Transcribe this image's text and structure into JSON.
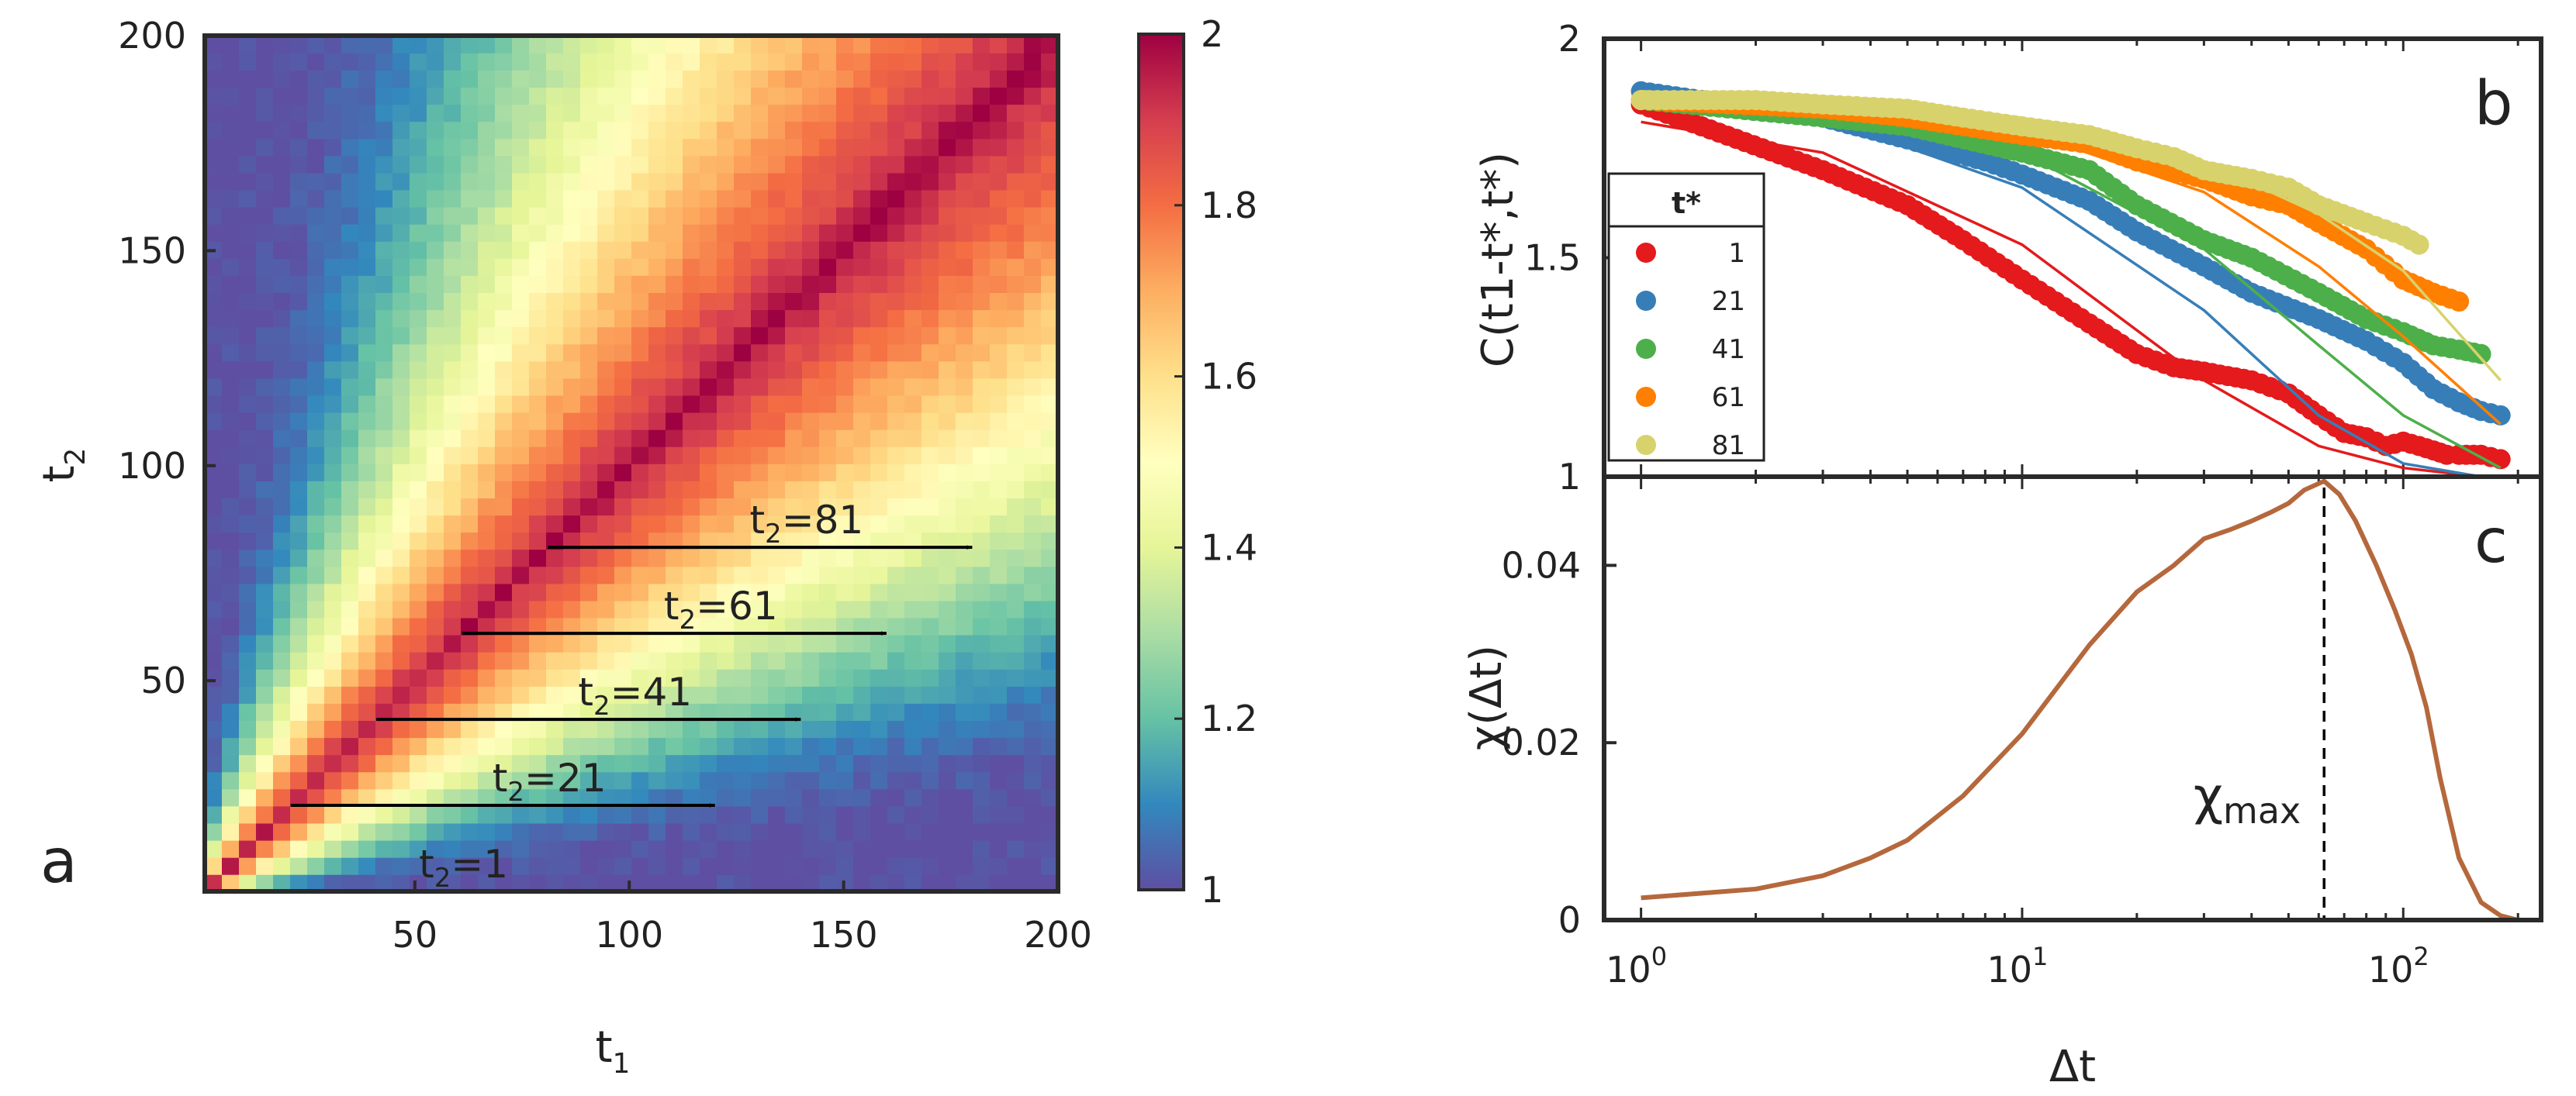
{
  "chart_data": [
    {
      "id": "a",
      "type": "heatmap",
      "panel_label": "a",
      "title": "",
      "xlabel": "t",
      "xlabel_sub": "1",
      "ylabel": "t",
      "ylabel_sub": "2",
      "xlim": [
        1,
        200
      ],
      "ylim": [
        1,
        200
      ],
      "xticks": [
        50,
        100,
        150,
        200
      ],
      "yticks": [
        50,
        100,
        150,
        200
      ],
      "colorbar": {
        "range": [
          1,
          2
        ],
        "ticks": [
          1,
          1.2,
          1.4,
          1.6,
          1.8,
          2
        ]
      },
      "colormap": [
        "#5e4fa2",
        "#3288bd",
        "#66c2a5",
        "#abdda4",
        "#e6f598",
        "#ffffbf",
        "#fee08b",
        "#fdae61",
        "#f46d43",
        "#d53e4f",
        "#9e0142"
      ],
      "arrows": [
        {
          "t2": 1,
          "x_start": 1,
          "x_end": 100,
          "label_prefix": "t",
          "label_sub": "2",
          "label_value": "=1"
        },
        {
          "t2": 21,
          "x_start": 21,
          "x_end": 120,
          "label_prefix": "t",
          "label_sub": "2",
          "label_value": "=21"
        },
        {
          "t2": 41,
          "x_start": 41,
          "x_end": 140,
          "label_prefix": "t",
          "label_sub": "2",
          "label_value": "=41"
        },
        {
          "t2": 61,
          "x_start": 61,
          "x_end": 160,
          "label_prefix": "t",
          "label_sub": "2",
          "label_value": "=61"
        },
        {
          "t2": 81,
          "x_start": 81,
          "x_end": 180,
          "label_prefix": "t",
          "label_sub": "2",
          "label_value": "=81"
        }
      ],
      "description_values": {
        "diagonal": 2.0,
        "far_offdiag_min": 1.0
      }
    },
    {
      "id": "b",
      "type": "scatter",
      "panel_label": "b",
      "ylabel": "C(t1-t*,t*)",
      "xscale": "log",
      "xlim": [
        0.8,
        230
      ],
      "ylim": [
        1,
        2
      ],
      "yticks": [
        1,
        1.5,
        2
      ],
      "legend": {
        "title": "t*",
        "placement": "middle-left"
      },
      "series": [
        {
          "name": "1",
          "color": "#e41a1c",
          "points": [
            [
              1,
              1.85
            ],
            [
              3,
              1.7
            ],
            [
              5,
              1.62
            ],
            [
              7,
              1.54
            ],
            [
              10,
              1.45
            ],
            [
              15,
              1.35
            ],
            [
              20,
              1.28
            ],
            [
              25,
              1.25
            ],
            [
              30,
              1.24
            ],
            [
              40,
              1.22
            ],
            [
              50,
              1.19
            ],
            [
              60,
              1.14
            ],
            [
              70,
              1.1
            ],
            [
              80,
              1.09
            ],
            [
              90,
              1.07
            ],
            [
              100,
              1.08
            ],
            [
              110,
              1.07
            ],
            [
              120,
              1.06
            ],
            [
              130,
              1.05
            ],
            [
              140,
              1.05
            ],
            [
              160,
              1.05
            ],
            [
              180,
              1.04
            ]
          ],
          "fit": [
            [
              1,
              1.81
            ],
            [
              3,
              1.74
            ],
            [
              10,
              1.53
            ],
            [
              30,
              1.22
            ],
            [
              60,
              1.07
            ],
            [
              100,
              1.02
            ],
            [
              160,
              1.0
            ]
          ]
        },
        {
          "name": "21",
          "color": "#377eb8",
          "points": [
            [
              1,
              1.88
            ],
            [
              3,
              1.82
            ],
            [
              5,
              1.77
            ],
            [
              8,
              1.72
            ],
            [
              10,
              1.69
            ],
            [
              15,
              1.63
            ],
            [
              20,
              1.56
            ],
            [
              30,
              1.48
            ],
            [
              40,
              1.42
            ],
            [
              60,
              1.36
            ],
            [
              80,
              1.31
            ],
            [
              100,
              1.26
            ],
            [
              120,
              1.2
            ],
            [
              140,
              1.17
            ],
            [
              160,
              1.15
            ],
            [
              180,
              1.14
            ]
          ],
          "fit": [
            [
              1,
              1.86
            ],
            [
              3,
              1.82
            ],
            [
              10,
              1.66
            ],
            [
              30,
              1.38
            ],
            [
              60,
              1.14
            ],
            [
              100,
              1.03
            ],
            [
              160,
              1.0
            ]
          ]
        },
        {
          "name": "41",
          "color": "#4daf4a",
          "points": [
            [
              1,
              1.86
            ],
            [
              3,
              1.82
            ],
            [
              5,
              1.8
            ],
            [
              10,
              1.74
            ],
            [
              15,
              1.7
            ],
            [
              20,
              1.62
            ],
            [
              30,
              1.54
            ],
            [
              40,
              1.5
            ],
            [
              60,
              1.42
            ],
            [
              80,
              1.36
            ],
            [
              100,
              1.33
            ],
            [
              120,
              1.3
            ],
            [
              140,
              1.29
            ],
            [
              160,
              1.28
            ]
          ],
          "fit": [
            [
              1,
              1.87
            ],
            [
              3,
              1.84
            ],
            [
              10,
              1.74
            ],
            [
              30,
              1.52
            ],
            [
              60,
              1.3
            ],
            [
              100,
              1.14
            ],
            [
              180,
              1.02
            ]
          ]
        },
        {
          "name": "61",
          "color": "#ff7f00",
          "points": [
            [
              1,
              1.86
            ],
            [
              3,
              1.84
            ],
            [
              5,
              1.82
            ],
            [
              10,
              1.78
            ],
            [
              15,
              1.76
            ],
            [
              20,
              1.72
            ],
            [
              30,
              1.68
            ],
            [
              40,
              1.64
            ],
            [
              50,
              1.62
            ],
            [
              60,
              1.58
            ],
            [
              80,
              1.52
            ],
            [
              100,
              1.45
            ],
            [
              120,
              1.42
            ],
            [
              140,
              1.4
            ]
          ],
          "fit": [
            [
              1,
              1.87
            ],
            [
              3,
              1.85
            ],
            [
              10,
              1.79
            ],
            [
              30,
              1.65
            ],
            [
              60,
              1.48
            ],
            [
              100,
              1.32
            ],
            [
              180,
              1.12
            ]
          ]
        },
        {
          "name": "81",
          "color": "#d8d26c",
          "points": [
            [
              1,
              1.86
            ],
            [
              2,
              1.86
            ],
            [
              3,
              1.85
            ],
            [
              5,
              1.84
            ],
            [
              7,
              1.82
            ],
            [
              10,
              1.8
            ],
            [
              15,
              1.78
            ],
            [
              20,
              1.75
            ],
            [
              25,
              1.73
            ],
            [
              30,
              1.7
            ],
            [
              40,
              1.68
            ],
            [
              50,
              1.66
            ],
            [
              60,
              1.62
            ],
            [
              80,
              1.58
            ],
            [
              100,
              1.55
            ],
            [
              110,
              1.53
            ]
          ],
          "fit": [
            [
              1,
              1.88
            ],
            [
              3,
              1.86
            ],
            [
              10,
              1.82
            ],
            [
              30,
              1.72
            ],
            [
              60,
              1.6
            ],
            [
              100,
              1.47
            ],
            [
              180,
              1.22
            ]
          ]
        }
      ]
    },
    {
      "id": "c",
      "type": "line",
      "panel_label": "c",
      "xlabel": "Δt",
      "ylabel": "χ(Δt)",
      "xscale": "log",
      "xlim": [
        0.8,
        230
      ],
      "ylim": [
        0,
        0.05
      ],
      "yticks": [
        0,
        0.02,
        0.04
      ],
      "ytick_labels": [
        "0",
        "0.02",
        "0.04"
      ],
      "xtick_labels": [
        {
          "base": "10",
          "exp": "0",
          "value": 1
        },
        {
          "base": "10",
          "exp": "1",
          "value": 10
        },
        {
          "base": "10",
          "exp": "2",
          "value": 100
        }
      ],
      "color": "#b5683c",
      "x": [
        1,
        2,
        3,
        4,
        5,
        7,
        10,
        15,
        20,
        25,
        30,
        35,
        40,
        45,
        50,
        55,
        62,
        68,
        75,
        85,
        95,
        105,
        115,
        125,
        140,
        160,
        180,
        200
      ],
      "y": [
        0.0025,
        0.0035,
        0.005,
        0.007,
        0.009,
        0.014,
        0.021,
        0.031,
        0.037,
        0.04,
        0.043,
        0.044,
        0.045,
        0.046,
        0.047,
        0.0485,
        0.0495,
        0.048,
        0.045,
        0.04,
        0.035,
        0.03,
        0.024,
        0.016,
        0.007,
        0.002,
        0.0005,
        0.0
      ],
      "vline": {
        "x": 62,
        "style": "dashed"
      },
      "annotation": {
        "base": "χ",
        "sub": "max",
        "x": 62
      }
    }
  ]
}
